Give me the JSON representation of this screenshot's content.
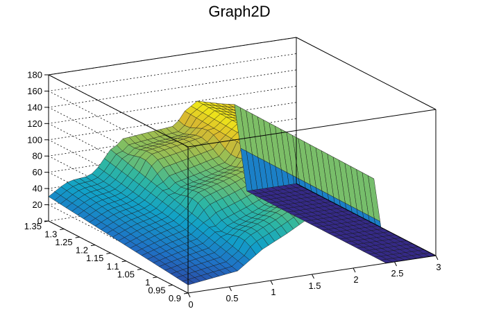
{
  "chart_data": {
    "type": "surface",
    "title": "Graph2D",
    "xlabel": "",
    "ylabel": "",
    "zlabel": "",
    "xlim": [
      0,
      3
    ],
    "ylim": [
      0.9,
      1.35
    ],
    "zlim": [
      0,
      180
    ],
    "x_ticks": [
      "0",
      "0.5",
      "1",
      "1.5",
      "2",
      "2.5",
      "3"
    ],
    "y_ticks": [
      "0.9",
      "0.95",
      "1",
      "1.05",
      "1.1",
      "1.15",
      "1.2",
      "1.25",
      "1.3",
      "1.35"
    ],
    "z_ticks": [
      "0",
      "20",
      "40",
      "60",
      "80",
      "100",
      "120",
      "140",
      "160",
      "180"
    ],
    "grid": true,
    "colormap": [
      "#352a87",
      "#1f72c6",
      "#11a1c8",
      "#2fb7a2",
      "#86bf5f",
      "#d9ba2f",
      "#f9fb0e"
    ],
    "surface_profile": {
      "description_points_x": [
        0,
        0.3,
        0.6,
        0.9,
        1.2,
        1.5,
        1.65,
        1.8,
        2.1,
        2.3,
        2.35,
        2.45,
        3
      ],
      "z_at_y_0_9": [
        10,
        14,
        18,
        40,
        55,
        72,
        98,
        115,
        110,
        105,
        0,
        0,
        0
      ],
      "z_at_y_1_35": [
        30,
        50,
        65,
        92,
        95,
        98,
        110,
        120,
        112,
        108,
        0,
        0,
        0
      ]
    }
  }
}
